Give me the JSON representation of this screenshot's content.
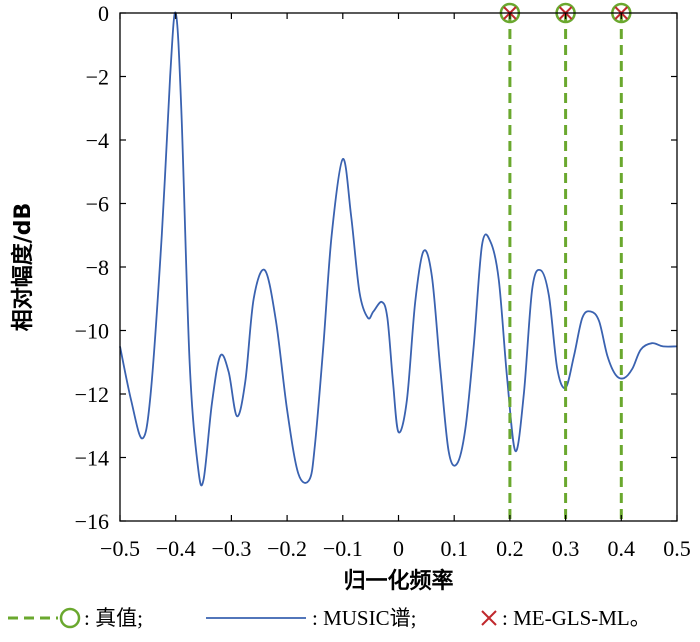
{
  "chart_data": {
    "type": "line",
    "xlabel": "归一化频率",
    "ylabel": "相对幅度/dB",
    "xlim": [
      -0.5,
      0.5
    ],
    "ylim": [
      -16,
      0
    ],
    "xticks": [
      -0.5,
      -0.4,
      -0.3,
      -0.2,
      -0.1,
      0,
      0.1,
      0.2,
      0.3,
      0.4,
      0.5
    ],
    "xtick_labels": [
      "−0.5",
      "−0.4",
      "−0.3",
      "−0.2",
      "−0.1",
      "0",
      "0.1",
      "0.2",
      "0.3",
      "0.4",
      "0.5"
    ],
    "yticks": [
      0,
      -2,
      -4,
      -6,
      -8,
      -10,
      -12,
      -14,
      -16
    ],
    "ytick_labels": [
      "0",
      "−2",
      "−4",
      "−6",
      "−8",
      "−10",
      "−12",
      "−14",
      "−16"
    ],
    "grid": false,
    "series": [
      {
        "name": "MUSIC谱",
        "color": "#3a62b0",
        "style": "solid",
        "x": [
          -0.5,
          -0.48,
          -0.46,
          -0.445,
          -0.425,
          -0.41,
          -0.4,
          -0.39,
          -0.375,
          -0.36,
          -0.35,
          -0.335,
          -0.32,
          -0.305,
          -0.29,
          -0.275,
          -0.26,
          -0.24,
          -0.22,
          -0.2,
          -0.18,
          -0.16,
          -0.15,
          -0.135,
          -0.12,
          -0.1,
          -0.085,
          -0.07,
          -0.055,
          -0.045,
          -0.03,
          -0.02,
          -0.01,
          0,
          0.015,
          0.03,
          0.045,
          0.06,
          0.075,
          0.09,
          0.105,
          0.12,
          0.135,
          0.15,
          0.165,
          0.18,
          0.195,
          0.21,
          0.225,
          0.24,
          0.255,
          0.27,
          0.285,
          0.3,
          0.315,
          0.33,
          0.345,
          0.36,
          0.375,
          0.39,
          0.405,
          0.42,
          0.435,
          0.455,
          0.475,
          0.5
        ],
        "y": [
          -10.5,
          -12.2,
          -13.4,
          -12.0,
          -7.0,
          -2.0,
          0.0,
          -3.0,
          -11.0,
          -14.3,
          -14.7,
          -12.3,
          -10.8,
          -11.3,
          -12.7,
          -11.6,
          -9.0,
          -8.1,
          -9.7,
          -12.5,
          -14.5,
          -14.7,
          -13.6,
          -10.5,
          -7.0,
          -4.6,
          -6.4,
          -8.8,
          -9.6,
          -9.4,
          -9.1,
          -9.6,
          -11.6,
          -13.2,
          -12.2,
          -9.1,
          -7.5,
          -8.3,
          -11.2,
          -13.8,
          -14.2,
          -13.1,
          -10.5,
          -7.3,
          -7.2,
          -8.4,
          -11.5,
          -13.8,
          -12.0,
          -8.7,
          -8.1,
          -8.9,
          -11.2,
          -11.8,
          -10.8,
          -9.6,
          -9.4,
          -9.7,
          -10.8,
          -11.4,
          -11.5,
          -11.2,
          -10.6,
          -10.4,
          -10.5,
          -10.5
        ]
      },
      {
        "name": "真值",
        "color": "#6aa82e",
        "style": "dashed-with-circle-marker",
        "x": [
          0.2,
          0.3,
          0.4
        ],
        "y": [
          0,
          0,
          0
        ]
      },
      {
        "name": "ME-GLS-ML",
        "color": "#c0282c",
        "style": "x-marker",
        "x": [
          0.2,
          0.3,
          0.4
        ],
        "y": [
          0,
          0,
          0
        ]
      }
    ],
    "legend": {
      "placement": "bottom",
      "items": [
        {
          "text": ": 真值;",
          "series": "真值"
        },
        {
          "text": ": MUSIC谱;",
          "series": "MUSIC谱"
        },
        {
          "text": ": ME-GLS-ML。",
          "series": "ME-GLS-ML"
        }
      ]
    }
  }
}
